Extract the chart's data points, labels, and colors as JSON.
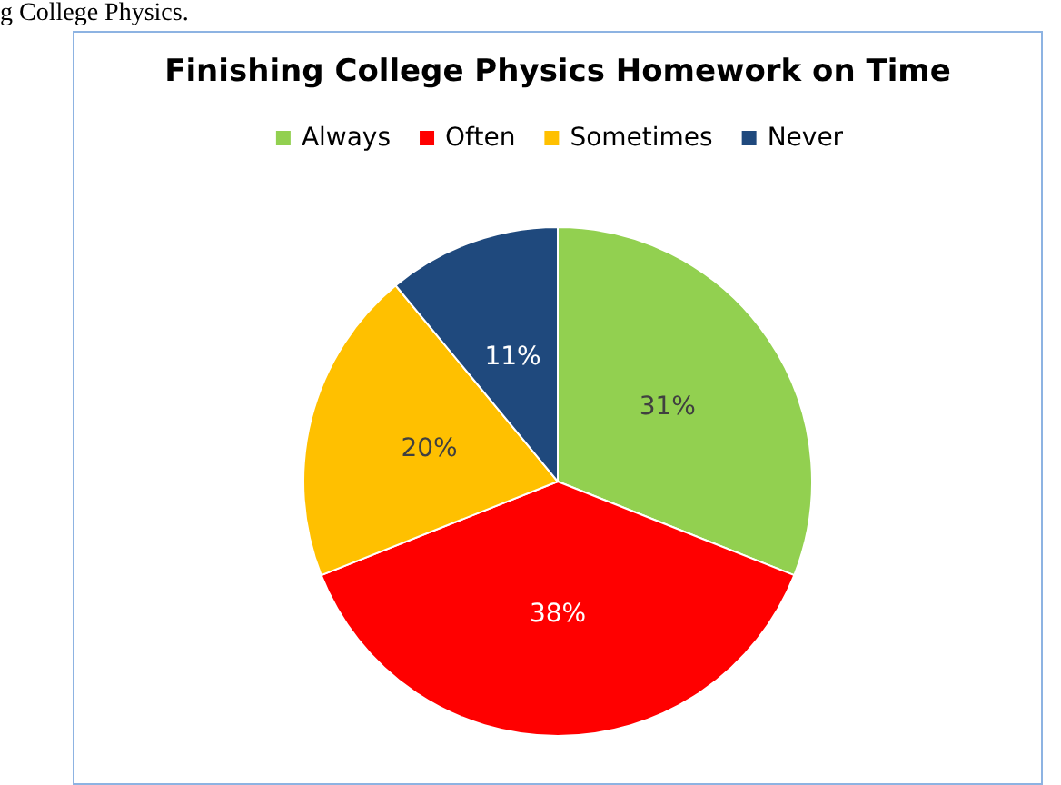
{
  "chart_data": {
    "type": "pie",
    "title": "Finishing College Physics Homework on Time",
    "categories": [
      "Always",
      "Often",
      "Sometimes",
      "Never"
    ],
    "values": [
      31,
      38,
      20,
      11
    ],
    "colors": [
      "#92d050",
      "#ff0000",
      "#ffc000",
      "#1f497d"
    ],
    "value_labels": [
      "31%",
      "38%",
      "20%",
      "11%"
    ],
    "legend": "top",
    "annotations": [
      "g College Physics."
    ]
  }
}
